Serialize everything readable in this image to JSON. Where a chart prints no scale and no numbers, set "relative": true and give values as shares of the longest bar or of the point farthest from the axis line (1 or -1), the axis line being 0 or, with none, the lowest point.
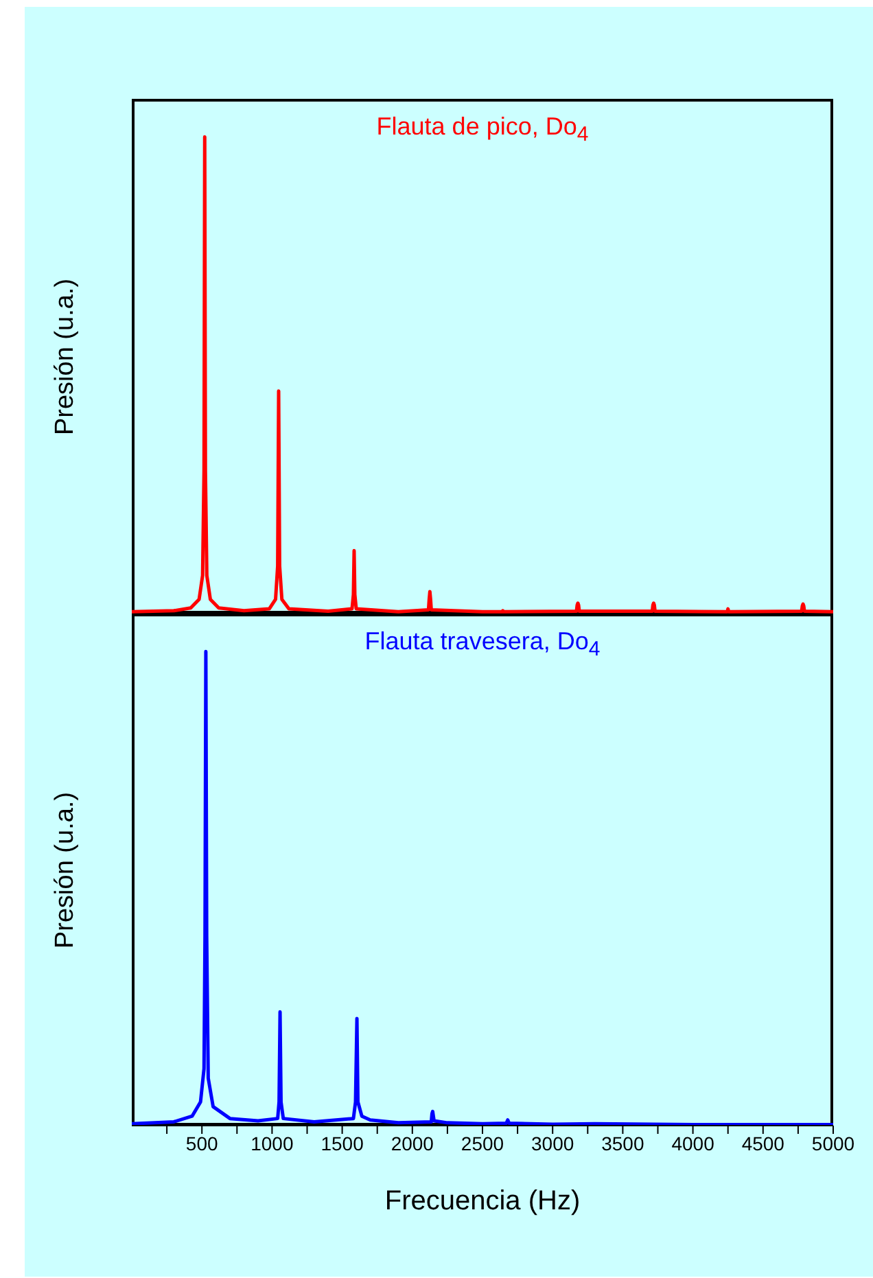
{
  "chart_data": [
    {
      "type": "line",
      "title": "Flauta de pico, Do$_{4}$",
      "ylabel": "Presión (u.a.)",
      "relative": true,
      "xlim": [
        0,
        5000
      ],
      "tick_labels": false,
      "marker": "none",
      "line_style": "solid",
      "grid": false,
      "legend": false,
      "series": [
        {
          "color": "#ff0000",
          "x": [
            0,
            300,
            420,
            480,
            505,
            515,
            520,
            525,
            535,
            560,
            620,
            800,
            980,
            1025,
            1040,
            1047,
            1054,
            1070,
            1120,
            1400,
            1570,
            1580,
            1585,
            1590,
            1600,
            1900,
            2115,
            2120,
            2125,
            2130,
            2135,
            2500,
            2640,
            2645,
            2650,
            3170,
            3175,
            3180,
            3185,
            3190,
            3710,
            3715,
            3720,
            3725,
            3730,
            4245,
            4250,
            4255,
            4775,
            4780,
            4785,
            4790,
            4795,
            5000
          ],
          "values": [
            0.004,
            0.006,
            0.012,
            0.03,
            0.08,
            0.3,
            1,
            0.3,
            0.08,
            0.03,
            0.012,
            0.006,
            0.01,
            0.03,
            0.1,
            0.467,
            0.1,
            0.03,
            0.01,
            0.005,
            0.01,
            0.04,
            0.132,
            0.04,
            0.01,
            0.004,
            0.008,
            0.03,
            0.046,
            0.03,
            0.008,
            0.004,
            0.004,
            0.006,
            0.004,
            0.005,
            0.018,
            0.022,
            0.018,
            0.005,
            0.005,
            0.018,
            0.022,
            0.018,
            0.005,
            0.004,
            0.01,
            0.004,
            0.005,
            0.016,
            0.02,
            0.016,
            0.005,
            0.004
          ]
        }
      ]
    },
    {
      "type": "line",
      "title": "Flauta travesera, Do$_{4}$",
      "ylabel": "Presión (u.a.)",
      "xlabel": "Frecuencia (Hz)",
      "relative": true,
      "xlim": [
        0,
        5000
      ],
      "tick_labels": "x",
      "marker": "none",
      "line_style": "solid",
      "grid": false,
      "legend": false,
      "xticks": [
        {
          "value": 250,
          "label": null
        },
        500,
        {
          "value": 750,
          "label": null
        },
        1000,
        {
          "value": 1250,
          "label": null
        },
        1500,
        {
          "value": 1750,
          "label": null
        },
        2000,
        {
          "value": 2250,
          "label": null
        },
        2500,
        {
          "value": 2750,
          "label": null
        },
        3000,
        {
          "value": 3250,
          "label": null
        },
        3500,
        {
          "value": 3750,
          "label": null
        },
        4000,
        {
          "value": 4250,
          "label": null
        },
        4500,
        {
          "value": 4750,
          "label": null
        },
        5000
      ],
      "series": [
        {
          "color": "#0000ff",
          "x": [
            0,
            300,
            430,
            490,
            515,
            522,
            528,
            534,
            545,
            580,
            700,
            900,
            1040,
            1050,
            1057,
            1064,
            1080,
            1300,
            1580,
            1595,
            1605,
            1612,
            1640,
            1700,
            1900,
            2135,
            2140,
            2145,
            2155,
            2250,
            2500,
            2670,
            2680,
            2690,
            3000,
            3300,
            4000,
            5000
          ],
          "values": [
            0.004,
            0.008,
            0.02,
            0.05,
            0.12,
            0.4,
            1,
            0.4,
            0.1,
            0.04,
            0.015,
            0.01,
            0.015,
            0.05,
            0.24,
            0.05,
            0.015,
            0.008,
            0.015,
            0.05,
            0.226,
            0.05,
            0.02,
            0.012,
            0.006,
            0.008,
            0.025,
            0.03,
            0.01,
            0.006,
            0.004,
            0.005,
            0.012,
            0.005,
            0.003,
            0.004,
            0.002,
            0.002
          ]
        }
      ]
    }
  ]
}
